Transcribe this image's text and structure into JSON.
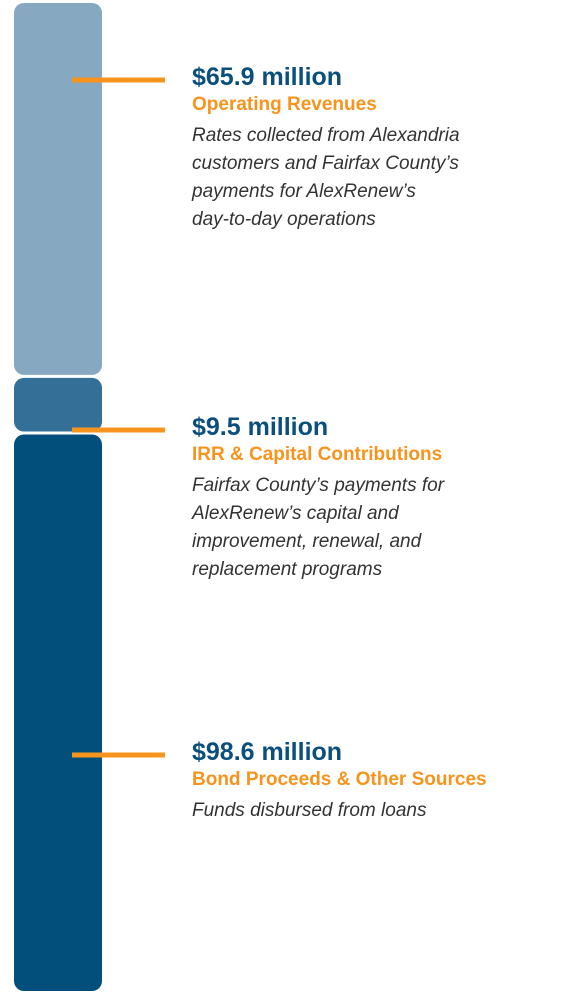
{
  "chart_data": {
    "type": "stacked-column",
    "series": [
      {
        "name": "Operating Revenues",
        "color": "#86a8c0",
        "values": [
          65.9
        ],
        "value_labels": [
          "$65.9 million"
        ],
        "description": [
          "Rates collected from Alexandria",
          "customers and Fairfax County’s",
          "payments for AlexRenew’s",
          "day-to-day operations"
        ]
      },
      {
        "name": "IRR & Capital Contributions",
        "color": "#336f96",
        "values": [
          9.5
        ],
        "value_labels": [
          "$9.5 million"
        ],
        "description": [
          "Fairfax County’s payments for",
          "AlexRenew’s capital and",
          "improvement, renewal, and",
          "replacement programs"
        ]
      },
      {
        "name": "Bond Proceeds & Other Sources",
        "color": "#034f7b",
        "values": [
          98.6
        ],
        "value_labels": [
          "$98.6 million"
        ],
        "description": [
          "Funds disbursed from loans"
        ]
      }
    ]
  }
}
